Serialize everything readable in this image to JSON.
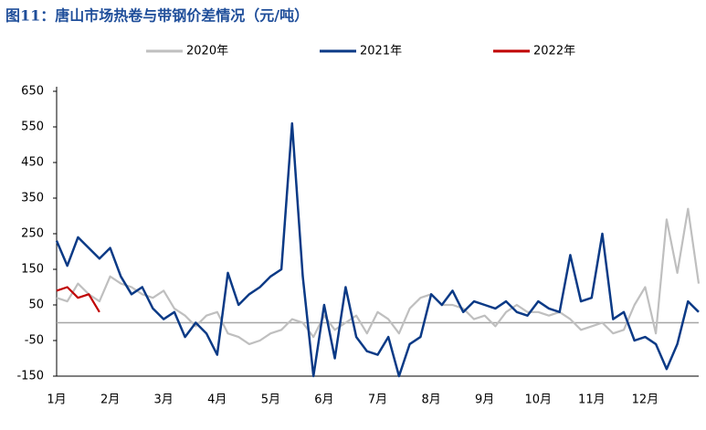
{
  "chart_data": {
    "type": "line",
    "title": "图11：唐山市场热卷与带钢价差情况（元/吨）",
    "categories": [
      "1月",
      null,
      null,
      null,
      null,
      "2月",
      null,
      null,
      null,
      null,
      "3月",
      null,
      null,
      null,
      null,
      "4月",
      null,
      null,
      null,
      null,
      "5月",
      null,
      null,
      null,
      null,
      "6月",
      null,
      null,
      null,
      null,
      "7月",
      null,
      null,
      null,
      null,
      "8月",
      null,
      null,
      null,
      null,
      "9月",
      null,
      null,
      null,
      null,
      "10月",
      null,
      null,
      null,
      null,
      "11月",
      null,
      null,
      null,
      null,
      "12月",
      null,
      null,
      null,
      null,
      null
    ],
    "series": [
      {
        "name": "2020年",
        "color": "#bfbfbf",
        "values": [
          70,
          60,
          110,
          80,
          60,
          130,
          110,
          100,
          80,
          70,
          90,
          40,
          20,
          -10,
          20,
          30,
          -30,
          -40,
          -60,
          -50,
          -30,
          -20,
          10,
          0,
          -40,
          20,
          -20,
          0,
          20,
          -30,
          30,
          10,
          -30,
          40,
          70,
          80,
          50,
          50,
          40,
          10,
          20,
          -10,
          30,
          50,
          30,
          30,
          20,
          30,
          10,
          -20,
          -10,
          0,
          -30,
          -20,
          50,
          100,
          -30,
          290,
          140,
          320,
          110
        ]
      },
      {
        "name": "2021年",
        "color": "#0b3a86",
        "values": [
          230,
          160,
          240,
          210,
          180,
          210,
          130,
          80,
          100,
          40,
          10,
          30,
          -40,
          0,
          -30,
          -90,
          140,
          50,
          80,
          100,
          130,
          150,
          560,
          130,
          -150,
          50,
          -100,
          100,
          -40,
          -80,
          -90,
          -40,
          -150,
          -60,
          -40,
          80,
          50,
          90,
          30,
          60,
          50,
          40,
          60,
          30,
          20,
          60,
          40,
          30,
          190,
          60,
          70,
          250,
          10,
          30,
          -50,
          -40,
          -60,
          -130,
          -60,
          60,
          30
        ]
      },
      {
        "name": "2022年",
        "color": "#c00000",
        "values": [
          90,
          100,
          70,
          80,
          30,
          null,
          null,
          null,
          null,
          null,
          null,
          null,
          null,
          null,
          null,
          null,
          null,
          null,
          null,
          null,
          null,
          null,
          null,
          null,
          null,
          null,
          null,
          null,
          null,
          null,
          null,
          null,
          null,
          null,
          null,
          null,
          null,
          null,
          null,
          null,
          null,
          null,
          null,
          null,
          null,
          null,
          null,
          null,
          null,
          null,
          null,
          null,
          null,
          null,
          null,
          null,
          null,
          null,
          null,
          null,
          null
        ]
      }
    ],
    "ylim": [
      -150,
      650
    ],
    "yticks": [
      -150,
      -50,
      50,
      150,
      250,
      350,
      450,
      550,
      650
    ],
    "grid": false
  }
}
